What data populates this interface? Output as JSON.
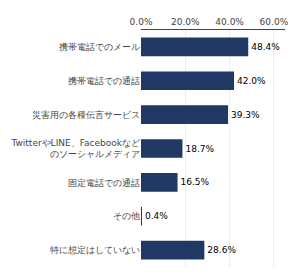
{
  "chart_data": {
    "type": "bar",
    "orientation": "horizontal",
    "categories": [
      "携帯電話でのメール",
      "携帯電話での通話",
      "災害用の各種伝言サービス",
      "TwitterやLINE、Facebookなど\nのソーシャルメディア",
      "固定電話での通話",
      "その他",
      "特に想定はしていない"
    ],
    "values": [
      48.4,
      42.0,
      39.3,
      18.7,
      16.5,
      0.4,
      28.6
    ],
    "value_labels": [
      "48.4%",
      "42.0%",
      "39.3%",
      "18.7%",
      "16.5%",
      "0.4%",
      "28.6%"
    ],
    "data_labels": true,
    "color": "#1F3864",
    "xlim": [
      0,
      65
    ],
    "xticks": [
      {
        "value": 0,
        "label": "0.0%"
      },
      {
        "value": 20,
        "label": "20.0%"
      },
      {
        "value": 40,
        "label": "40.0%"
      },
      {
        "value": 60,
        "label": "60.0%"
      }
    ],
    "grid": true
  }
}
